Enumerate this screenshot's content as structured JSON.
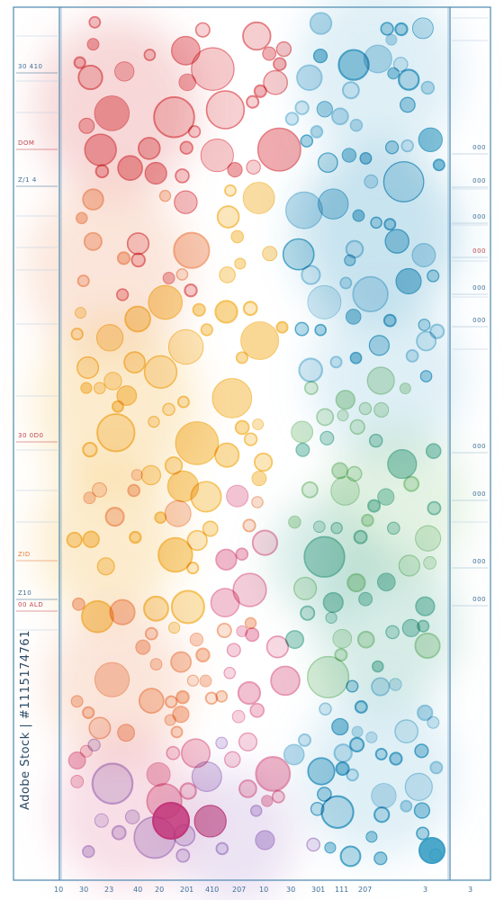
{
  "palette": {
    "frame": "#4a88b0",
    "red": "#e26a70",
    "peach": "#f0a27a",
    "yellow": "#f4bc4a",
    "pink": "#e58aa8",
    "lilac": "#b99ad4",
    "magenta": "#c2367a",
    "teal": "#6cbba8",
    "sage": "#9ccf9c",
    "blue": "#3a9ec4",
    "sky": "#8ac4de"
  },
  "left_labels": [
    {
      "text": "30  410",
      "color": "#3d6f96"
    },
    {
      "text": "DOM",
      "color": "#c0474f"
    },
    {
      "text": "Z/1  4",
      "color": "#3d6f96"
    },
    {
      "text": "30  0D0",
      "color": "#c0474f"
    },
    {
      "text": "ZID",
      "color": "#e07a3c"
    },
    {
      "text": "Z10",
      "color": "#3d6f96"
    },
    {
      "text": "00 ALD",
      "color": "#c0474f"
    }
  ],
  "right_labels": [
    {
      "text": "000",
      "color": "#3d6f96"
    },
    {
      "text": "000",
      "color": "#3d6f96"
    },
    {
      "text": "000",
      "color": "#3d6f96"
    },
    {
      "text": "000",
      "color": "#c0474f"
    },
    {
      "text": "000",
      "color": "#3d6f96"
    },
    {
      "text": "000",
      "color": "#3d6f96"
    },
    {
      "text": "000",
      "color": "#3d6f96"
    },
    {
      "text": "000",
      "color": "#3d6f96"
    },
    {
      "text": "000",
      "color": "#3d6f96"
    },
    {
      "text": "000",
      "color": "#3d6f96"
    }
  ],
  "bottom_labels": [
    "10",
    "30",
    "23",
    "40",
    "20",
    "201",
    "410",
    "207",
    "10",
    "30",
    "301",
    "111",
    "207",
    "3",
    "3"
  ],
  "stock_id": "Adobe Stock | #1115174761"
}
